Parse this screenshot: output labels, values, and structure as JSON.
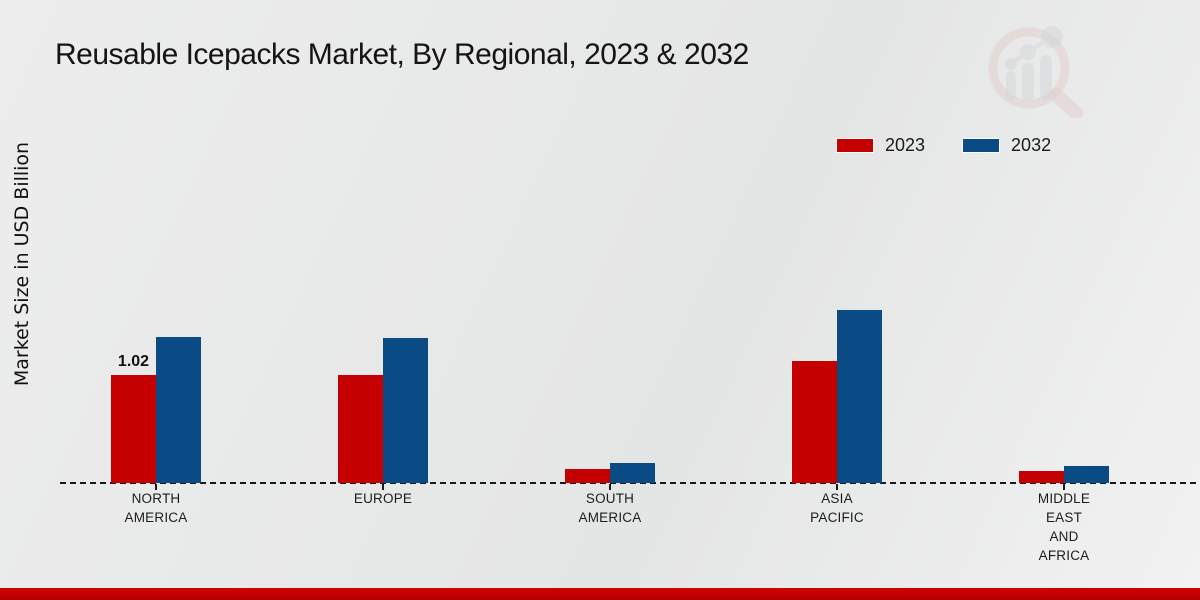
{
  "page": {
    "title": "Reusable Icepacks Market, By Regional, 2023 & 2032",
    "ylabel": "Market Size in USD Billion"
  },
  "colors": {
    "series_2023": "#c40000",
    "series_2032": "#0a4a85",
    "footer_strip": "#c00000",
    "background": "#eaeaea"
  },
  "chart_data": {
    "type": "bar",
    "title": "Reusable Icepacks Market, By Regional, 2023 & 2032",
    "xlabel": "",
    "ylabel": "Market Size in USD Billion",
    "categories": [
      "NORTH\nAMERICA",
      "EUROPE",
      "SOUTH\nAMERICA",
      "ASIA\nPACIFIC",
      "MIDDLE\nEAST\nAND\nAFRICA"
    ],
    "series": [
      {
        "name": "2023",
        "color": "#c40000",
        "values": [
          1.02,
          1.02,
          0.13,
          1.15,
          0.11
        ]
      },
      {
        "name": "2032",
        "color": "#0a4a85",
        "values": [
          1.38,
          1.37,
          0.19,
          1.63,
          0.16
        ]
      }
    ],
    "annotations": [
      {
        "series": "2023",
        "category_index": 0,
        "text": "1.02"
      }
    ],
    "ylim": [
      0,
      2
    ],
    "grid": false,
    "baseline_style": "dashed",
    "legend_position": "top-right",
    "axis_ticks_visible": false
  }
}
